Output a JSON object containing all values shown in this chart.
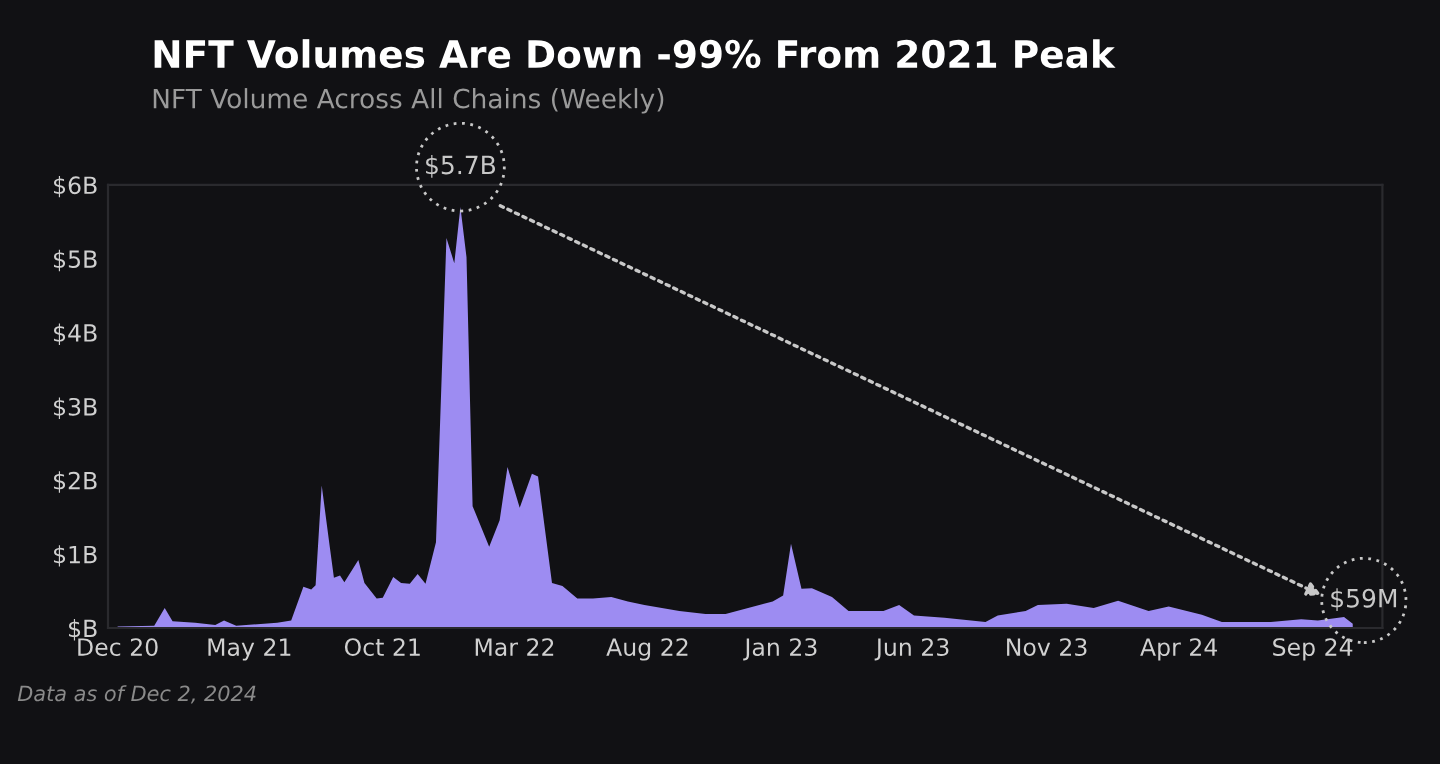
{
  "chart_data": {
    "type": "area",
    "title": "NFT Volumes Are Down -99% From 2021 Peak",
    "subtitle": "NFT Volume Across All Chains (Weekly)",
    "x": [
      "2020-12-01",
      "2021-01-12",
      "2021-01-24",
      "2021-02-02",
      "2021-02-28",
      "2021-03-23",
      "2021-04-02",
      "2021-04-16",
      "2021-06-02",
      "2021-06-18",
      "2021-07-02",
      "2021-07-11",
      "2021-07-16",
      "2021-07-23",
      "2021-08-01",
      "2021-08-06",
      "2021-08-13",
      "2021-08-18",
      "2021-09-03",
      "2021-09-10",
      "2021-09-24",
      "2021-10-01",
      "2021-10-13",
      "2021-10-22",
      "2021-11-01",
      "2021-11-10",
      "2021-11-19",
      "2021-12-01",
      "2021-12-13",
      "2021-12-22",
      "2021-12-29",
      "2022-01-05",
      "2022-01-12",
      "2022-01-31",
      "2022-02-12",
      "2022-02-21",
      "2022-03-07",
      "2022-03-21",
      "2022-03-28",
      "2022-04-13",
      "2022-04-25",
      "2022-05-12",
      "2022-05-30",
      "2022-06-20",
      "2022-07-09",
      "2022-07-28",
      "2022-09-06",
      "2022-10-06",
      "2022-10-29",
      "2022-12-22",
      "2023-01-03",
      "2023-01-12",
      "2023-01-24",
      "2023-02-05",
      "2023-02-28",
      "2023-03-19",
      "2023-04-28",
      "2023-05-16",
      "2023-06-02",
      "2023-07-07",
      "2023-08-23",
      "2023-09-06",
      "2023-10-08",
      "2023-10-22",
      "2023-11-24",
      "2023-12-25",
      "2024-01-22",
      "2024-02-26",
      "2024-03-20",
      "2024-04-27",
      "2024-05-20",
      "2024-07-15",
      "2024-08-19",
      "2024-09-07",
      "2024-10-07",
      "2024-10-17"
    ],
    "series": [
      {
        "color": "#9d8cf2",
        "values": [
          0.02,
          0.03,
          0.27,
          0.09,
          0.07,
          0.04,
          0.1,
          0.03,
          0.07,
          0.1,
          0.56,
          0.52,
          0.58,
          1.93,
          1.12,
          0.68,
          0.71,
          0.62,
          0.92,
          0.61,
          0.4,
          0.41,
          0.69,
          0.61,
          0.6,
          0.73,
          0.6,
          1.16,
          5.28,
          4.94,
          5.7,
          5.02,
          1.65,
          1.1,
          1.46,
          2.18,
          1.63,
          2.09,
          2.05,
          0.61,
          0.57,
          0.4,
          0.4,
          0.42,
          0.36,
          0.31,
          0.23,
          0.19,
          0.19,
          0.36,
          0.44,
          1.14,
          0.53,
          0.54,
          0.42,
          0.23,
          0.23,
          0.31,
          0.17,
          0.14,
          0.08,
          0.17,
          0.23,
          0.31,
          0.33,
          0.27,
          0.37,
          0.23,
          0.29,
          0.18,
          0.08,
          0.08,
          0.12,
          0.1,
          0.15,
          0.059
        ]
      }
    ],
    "xlim": [
      "2020-11-20",
      "2024-11-20"
    ],
    "xticks": [
      {
        "value": "2020-12-01",
        "label": "Dec 20"
      },
      {
        "value": "2021-05-01",
        "label": "May 21"
      },
      {
        "value": "2021-10-01",
        "label": "Oct 21"
      },
      {
        "value": "2022-03-01",
        "label": "Mar 22"
      },
      {
        "value": "2022-08-01",
        "label": "Aug 22"
      },
      {
        "value": "2023-01-01",
        "label": "Jan 23"
      },
      {
        "value": "2023-06-01",
        "label": "Jun 23"
      },
      {
        "value": "2023-11-01",
        "label": "Nov 23"
      },
      {
        "value": "2024-04-01",
        "label": "Apr 24"
      },
      {
        "value": "2024-09-01",
        "label": "Sep 24"
      }
    ],
    "ylim": [
      0,
      6
    ],
    "yticks": [
      {
        "value": 0,
        "label": "$B"
      },
      {
        "value": 1,
        "label": "$1B"
      },
      {
        "value": 2,
        "label": "$2B"
      },
      {
        "value": 3,
        "label": "$3B"
      },
      {
        "value": 4,
        "label": "$4B"
      },
      {
        "value": 5,
        "label": "$5B"
      },
      {
        "value": 6,
        "label": "$6B"
      }
    ],
    "grid": false,
    "legend": false,
    "annotations": [
      {
        "text": "$5.7B",
        "x": "2021-12-29",
        "y": 5.7
      },
      {
        "text": "$59M",
        "x": "2024-10-17",
        "y": 0.059
      },
      "Data as of Dec 2, 2024"
    ]
  }
}
